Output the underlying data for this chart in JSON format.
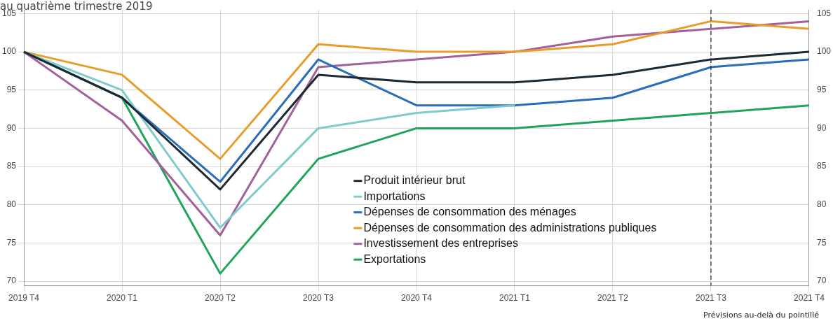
{
  "chart_data": {
    "type": "line",
    "title": "au quatrième trimestre 2019",
    "categories": [
      "2019 T4",
      "2020 T1",
      "2020 T2",
      "2020 T3",
      "2020 T4",
      "2021 T1",
      "2021 T2",
      "2021 T3",
      "2021 T4"
    ],
    "series": [
      {
        "name": "Produit intérieur brut",
        "color": "#1d2a33",
        "values": [
          100,
          94,
          82,
          97,
          96,
          96,
          97,
          99,
          100
        ]
      },
      {
        "name": "Importations",
        "color": "#7ecbcb",
        "values": [
          100,
          95,
          77,
          90,
          92,
          93,
          null,
          null,
          null
        ]
      },
      {
        "name": "Dépenses de consommation des ménages",
        "color": "#2a6ebb",
        "values": [
          100,
          94,
          83,
          99,
          93,
          93,
          94,
          98,
          99
        ]
      },
      {
        "name": "Dépenses de consommation des administrations publiques",
        "color": "#e89c2a",
        "values": [
          100,
          97,
          86,
          101,
          100,
          100,
          101,
          104,
          103
        ]
      },
      {
        "name": "Investissement des entreprises",
        "color": "#a2619a",
        "values": [
          100,
          91,
          76,
          98,
          99,
          100,
          102,
          103,
          104
        ]
      },
      {
        "name": "Exportations",
        "color": "#1fa55a",
        "values": [
          100,
          94,
          71,
          86,
          90,
          90,
          91,
          92,
          93
        ]
      }
    ],
    "ylim": [
      69.4,
      105.5
    ],
    "yticks": [
      70,
      75,
      80,
      85,
      90,
      95,
      100,
      105
    ],
    "y2lim": [
      69.4,
      105.5
    ],
    "y2ticks": [
      70,
      75,
      80,
      85,
      90,
      95,
      100,
      105
    ],
    "grid": true,
    "legend": "bottom",
    "marker": "none",
    "line_style": "solid",
    "ref_lines": [
      {
        "axis": "x",
        "value": "2021 T3",
        "color": "#1d2a33",
        "line_style": "dashed"
      }
    ],
    "annotations": [
      "Prévisions au-delà du pointillé"
    ]
  }
}
